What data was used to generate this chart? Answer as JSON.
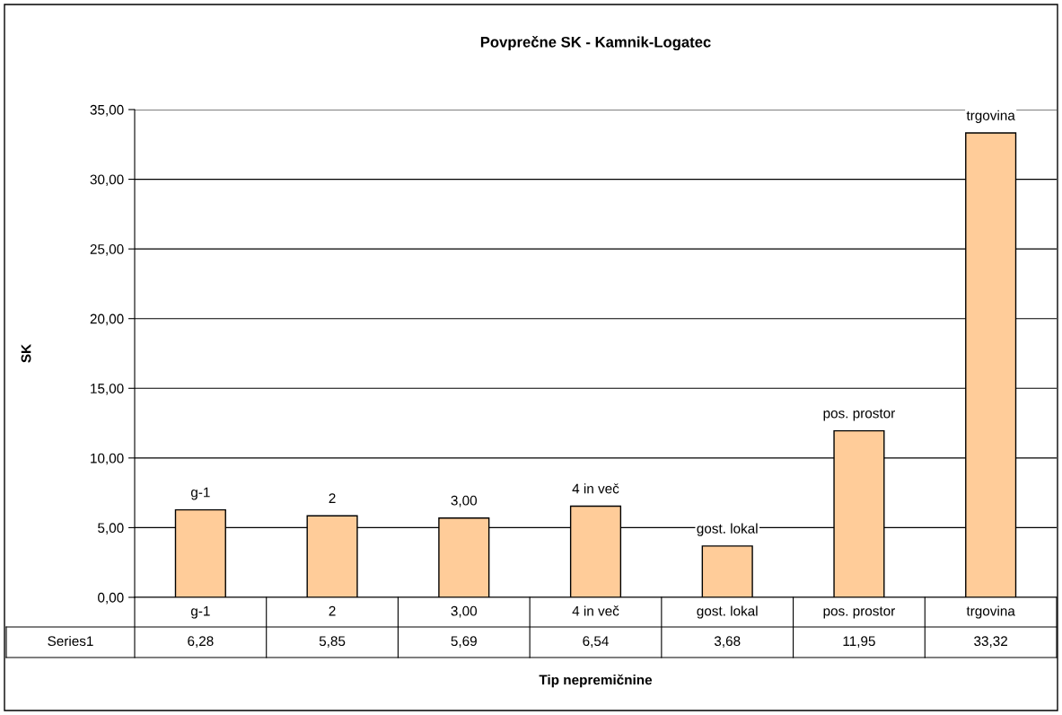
{
  "chart_data": {
    "type": "bar",
    "title": "Povprečne SK - Kamnik-Logatec",
    "xlabel": "Tip nepremičnine",
    "ylabel": "SK",
    "categories": [
      "g-1",
      "2",
      "3,00",
      "4 in več",
      "gost. lokal",
      "pos. prostor",
      "trgovina"
    ],
    "series": [
      {
        "name": "Series1",
        "color": "#ffcc99",
        "values": [
          6.28,
          5.85,
          5.69,
          6.54,
          3.68,
          11.95,
          33.32
        ],
        "value_labels": [
          "6,28",
          "5,85",
          "5,69",
          "6,54",
          "3,68",
          "11,95",
          "33,32"
        ]
      }
    ],
    "annotations": [
      {
        "text": "g-1",
        "x": "g-1",
        "y": 6.28
      },
      {
        "text": "2",
        "x": "2",
        "y": 5.85
      },
      {
        "text": "3,00",
        "x": "3,00",
        "y": 5.69
      },
      {
        "text": "4 in več",
        "x": "4 in več",
        "y": 6.54
      },
      {
        "text": "gost. lokal",
        "x": "gost. lokal",
        "y": 3.68
      },
      {
        "text": "pos. prostor",
        "x": "pos. prostor",
        "y": 11.95
      },
      {
        "text": "trgovina",
        "x": "trgovina",
        "y": 33.32
      }
    ],
    "ylim": [
      0,
      35
    ],
    "yticks": [
      {
        "value": 0,
        "label": "0,00"
      },
      {
        "value": 5,
        "label": "5,00"
      },
      {
        "value": 10,
        "label": "10,00"
      },
      {
        "value": 15,
        "label": "15,00"
      },
      {
        "value": 20,
        "label": "20,00"
      },
      {
        "value": 25,
        "label": "25,00"
      },
      {
        "value": 30,
        "label": "30,00"
      },
      {
        "value": 35,
        "label": "35,00"
      }
    ],
    "grid": "y",
    "legend": false
  }
}
